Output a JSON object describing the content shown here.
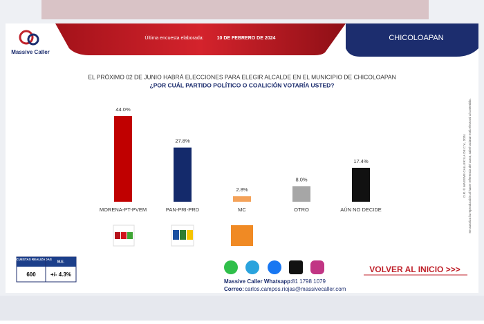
{
  "header": {
    "logo": "Massive Caller",
    "survey_label": "Última encuesta elaborada:",
    "survey_date": "10 DE FEBRERO DE 2024",
    "location": "CHICOLOAPAN"
  },
  "chart_data": {
    "type": "bar",
    "title": "EL PRÓXIMO 02 DE JUNIO HABRÁ ELECCIONES PARA ELEGIR ALCALDE EN EL MUNICIPIO DE CHICOLOAPAN",
    "subtitle": "¿POR CUÁL PARTIDO POLÍTICO O COALICIÓN VOTARÍA USTED?",
    "categories": [
      "MORENA-PT-PVEM",
      "PAN-PRI-PRD",
      "MC",
      "OTRO",
      "AÚN NO DECIDE"
    ],
    "values": [
      44.0,
      27.8,
      2.8,
      8.0,
      17.4
    ],
    "value_labels": [
      "44.0%",
      "27.8%",
      "2.8%",
      "8.0%",
      "17.4%"
    ],
    "colors": [
      "#c00000",
      "#142a6b",
      "#f4a259",
      "#a6a6a6",
      "#111111"
    ]
  },
  "side_notes": [
    "D.R. © MASSIVE CALLER S.A DE C.V., 2024",
    "Se autoriza la reproducción al hacer referencia del autor, sabré aclarar está electoral al contenido."
  ],
  "stats_table": {
    "headers": [
      "ENCUESTAS REALIZADAS",
      "M.E."
    ],
    "row": [
      "600",
      "+/- 4.3%"
    ]
  },
  "footer": {
    "whatsapp_label": "Massive Caller Whatsapp:",
    "whatsapp": "81 1798 1079",
    "email_label": "Correo:",
    "email": "carlos.campos.riojas@massivecaller.com",
    "back_link": "VOLVER AL INICIO >>>"
  }
}
